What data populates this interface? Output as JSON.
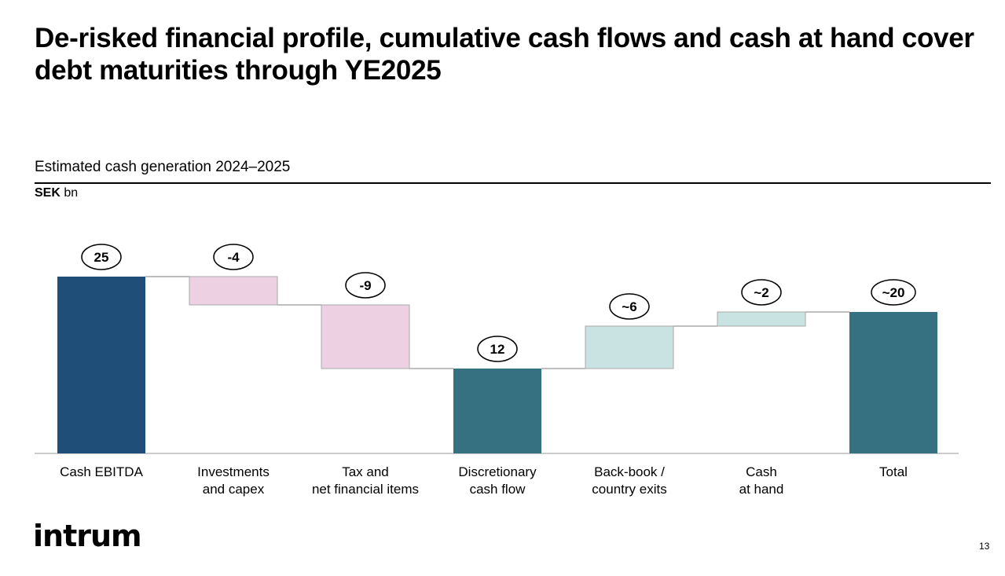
{
  "title": "De-risked financial profile, cumulative cash flows and cash at hand cover debt maturities through YE2025",
  "logo": "intrum",
  "page_number": "13",
  "chart_data": {
    "type": "waterfall",
    "title": "Estimated cash generation 2024–2025",
    "unit_bold": "SEK",
    "unit_rest": " bn",
    "categories": [
      "Cash EBITDA",
      "Investments\nand capex",
      "Tax and\nnet financial items",
      "Discretionary\ncash flow",
      "Back-book /\ncountry exits",
      "Cash\nat hand",
      "Total"
    ],
    "values": [
      25,
      -4,
      -9,
      12,
      6,
      2,
      20
    ],
    "labels": [
      "25",
      "-4",
      "-9",
      "12",
      "~6",
      "~2",
      "~20"
    ],
    "kinds": [
      "total",
      "delta",
      "delta",
      "total",
      "delta",
      "delta",
      "total"
    ],
    "colors": [
      "#1f4e79",
      "#edd1e3",
      "#edd1e3",
      "#357180",
      "#c9e3e2",
      "#c9e3e2",
      "#357180"
    ],
    "ylim": [
      0,
      25
    ]
  }
}
